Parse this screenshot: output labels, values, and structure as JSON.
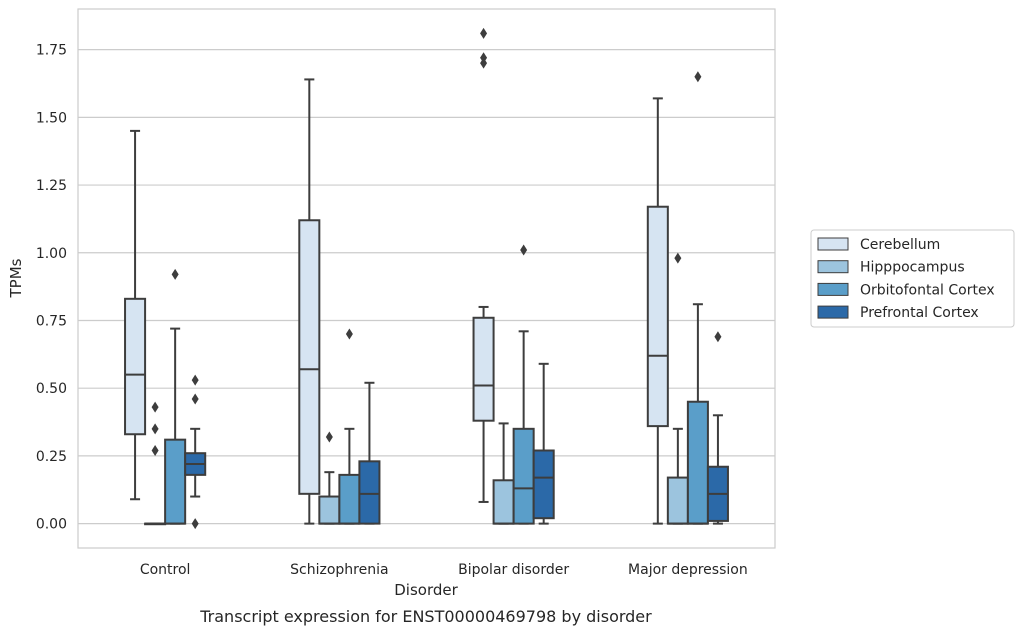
{
  "caption": "Transcript expression for ENST00000469798 by disorder",
  "chart_data": {
    "type": "box",
    "xlabel": "Disorder",
    "ylabel": "TPMs",
    "ylim": [
      -0.09,
      1.9
    ],
    "y_ticks": [
      0.0,
      0.25,
      0.5,
      0.75,
      1.0,
      1.25,
      1.5,
      1.75
    ],
    "y_tick_labels": [
      "0.00",
      "0.25",
      "0.50",
      "0.75",
      "1.00",
      "1.25",
      "1.50",
      "1.75"
    ],
    "grid": "horizontal",
    "legend_position": "right",
    "categories": [
      "Control",
      "Schizophrenia",
      "Bipolar disorder",
      "Major depression"
    ],
    "series": [
      {
        "name": "Cerebellum",
        "color": "#d6e4f2",
        "boxes": [
          {
            "whisker_low": 0.09,
            "q1": 0.33,
            "median": 0.55,
            "q3": 0.83,
            "whisker_high": 1.45,
            "outliers": []
          },
          {
            "whisker_low": 0.0,
            "q1": 0.11,
            "median": 0.57,
            "q3": 1.12,
            "whisker_high": 1.64,
            "outliers": []
          },
          {
            "whisker_low": 0.08,
            "q1": 0.38,
            "median": 0.51,
            "q3": 0.76,
            "whisker_high": 0.8,
            "outliers": [
              1.7,
              1.72,
              1.81
            ]
          },
          {
            "whisker_low": 0.0,
            "q1": 0.36,
            "median": 0.62,
            "q3": 1.17,
            "whisker_high": 1.57,
            "outliers": []
          }
        ]
      },
      {
        "name": "Hipppocampus",
        "color": "#9cc4de",
        "boxes": [
          {
            "whisker_low": 0.0,
            "q1": 0.0,
            "median": 0.0,
            "q3": 0.0,
            "whisker_high": 0.0,
            "outliers": [
              0.27,
              0.35,
              0.43
            ]
          },
          {
            "whisker_low": 0.0,
            "q1": 0.0,
            "median": 0.0,
            "q3": 0.1,
            "whisker_high": 0.19,
            "outliers": [
              0.32
            ]
          },
          {
            "whisker_low": 0.0,
            "q1": 0.0,
            "median": 0.0,
            "q3": 0.16,
            "whisker_high": 0.37,
            "outliers": []
          },
          {
            "whisker_low": 0.0,
            "q1": 0.0,
            "median": 0.0,
            "q3": 0.17,
            "whisker_high": 0.35,
            "outliers": [
              0.98
            ]
          }
        ]
      },
      {
        "name": "Orbitofontal Cortex",
        "color": "#5a9ec9",
        "boxes": [
          {
            "whisker_low": 0.0,
            "q1": 0.0,
            "median": 0.0,
            "q3": 0.31,
            "whisker_high": 0.72,
            "outliers": [
              0.92
            ]
          },
          {
            "whisker_low": 0.0,
            "q1": 0.0,
            "median": 0.0,
            "q3": 0.18,
            "whisker_high": 0.35,
            "outliers": [
              0.7
            ]
          },
          {
            "whisker_low": 0.0,
            "q1": 0.0,
            "median": 0.13,
            "q3": 0.35,
            "whisker_high": 0.71,
            "outliers": [
              1.01
            ]
          },
          {
            "whisker_low": 0.0,
            "q1": 0.0,
            "median": 0.0,
            "q3": 0.45,
            "whisker_high": 0.81,
            "outliers": [
              1.65
            ]
          }
        ]
      },
      {
        "name": "Prefrontal Cortex",
        "color": "#2b69a8",
        "boxes": [
          {
            "whisker_low": 0.1,
            "q1": 0.18,
            "median": 0.22,
            "q3": 0.26,
            "whisker_high": 0.35,
            "outliers": [
              0.0,
              0.46,
              0.53
            ]
          },
          {
            "whisker_low": 0.0,
            "q1": 0.0,
            "median": 0.11,
            "q3": 0.23,
            "whisker_high": 0.52,
            "outliers": []
          },
          {
            "whisker_low": 0.0,
            "q1": 0.02,
            "median": 0.17,
            "q3": 0.27,
            "whisker_high": 0.59,
            "outliers": []
          },
          {
            "whisker_low": 0.0,
            "q1": 0.01,
            "median": 0.11,
            "q3": 0.21,
            "whisker_high": 0.4,
            "outliers": [
              0.69
            ]
          }
        ]
      }
    ]
  }
}
